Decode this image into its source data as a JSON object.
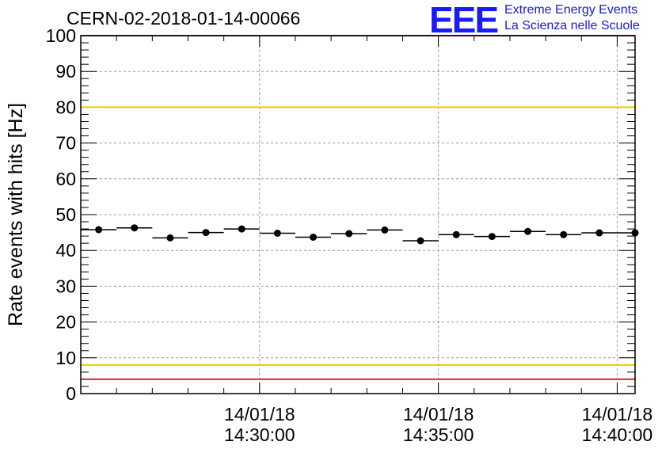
{
  "header": {
    "title": "CERN-02-2018-01-14-00066",
    "logo_text": "EEE",
    "logo_line1": "Extreme Energy Events",
    "logo_line2": "La Scienza nelle Scuole"
  },
  "colors": {
    "logo": "#1a1aff",
    "red_threshold": "#ee2222",
    "yellow_threshold": "#eecc00",
    "points": "#000000"
  },
  "chart_data": {
    "type": "scatter",
    "title": "CERN-02-2018-01-14-00066",
    "xlabel": "",
    "ylabel": "Rate events with hits [Hz]",
    "ylim": [
      0,
      100
    ],
    "yticks": [
      0,
      10,
      20,
      30,
      40,
      50,
      60,
      70,
      80,
      90,
      100
    ],
    "xlim_minutes": [
      25,
      40.5
    ],
    "xticks": [
      {
        "minute": 30,
        "date": "14/01/18",
        "time": "14:30:00"
      },
      {
        "minute": 35,
        "date": "14/01/18",
        "time": "14:35:00"
      },
      {
        "minute": 40,
        "date": "14/01/18",
        "time": "14:40:00"
      }
    ],
    "bin_width_minutes": 1,
    "x_minutes": [
      25.5,
      26.5,
      27.5,
      28.5,
      29.5,
      30.5,
      31.5,
      32.5,
      33.5,
      34.5,
      35.5,
      36.5,
      37.5,
      38.5,
      39.5,
      40.5
    ],
    "values": [
      45.8,
      46.3,
      43.5,
      45.0,
      46.0,
      44.8,
      43.7,
      44.7,
      45.7,
      42.7,
      44.4,
      43.9,
      45.3,
      44.4,
      44.9,
      44.9
    ],
    "thresholds": [
      {
        "value": 100,
        "color": "red"
      },
      {
        "value": 80,
        "color": "yellow"
      },
      {
        "value": 8,
        "color": "yellow"
      },
      {
        "value": 4,
        "color": "red"
      }
    ],
    "grid": true
  }
}
